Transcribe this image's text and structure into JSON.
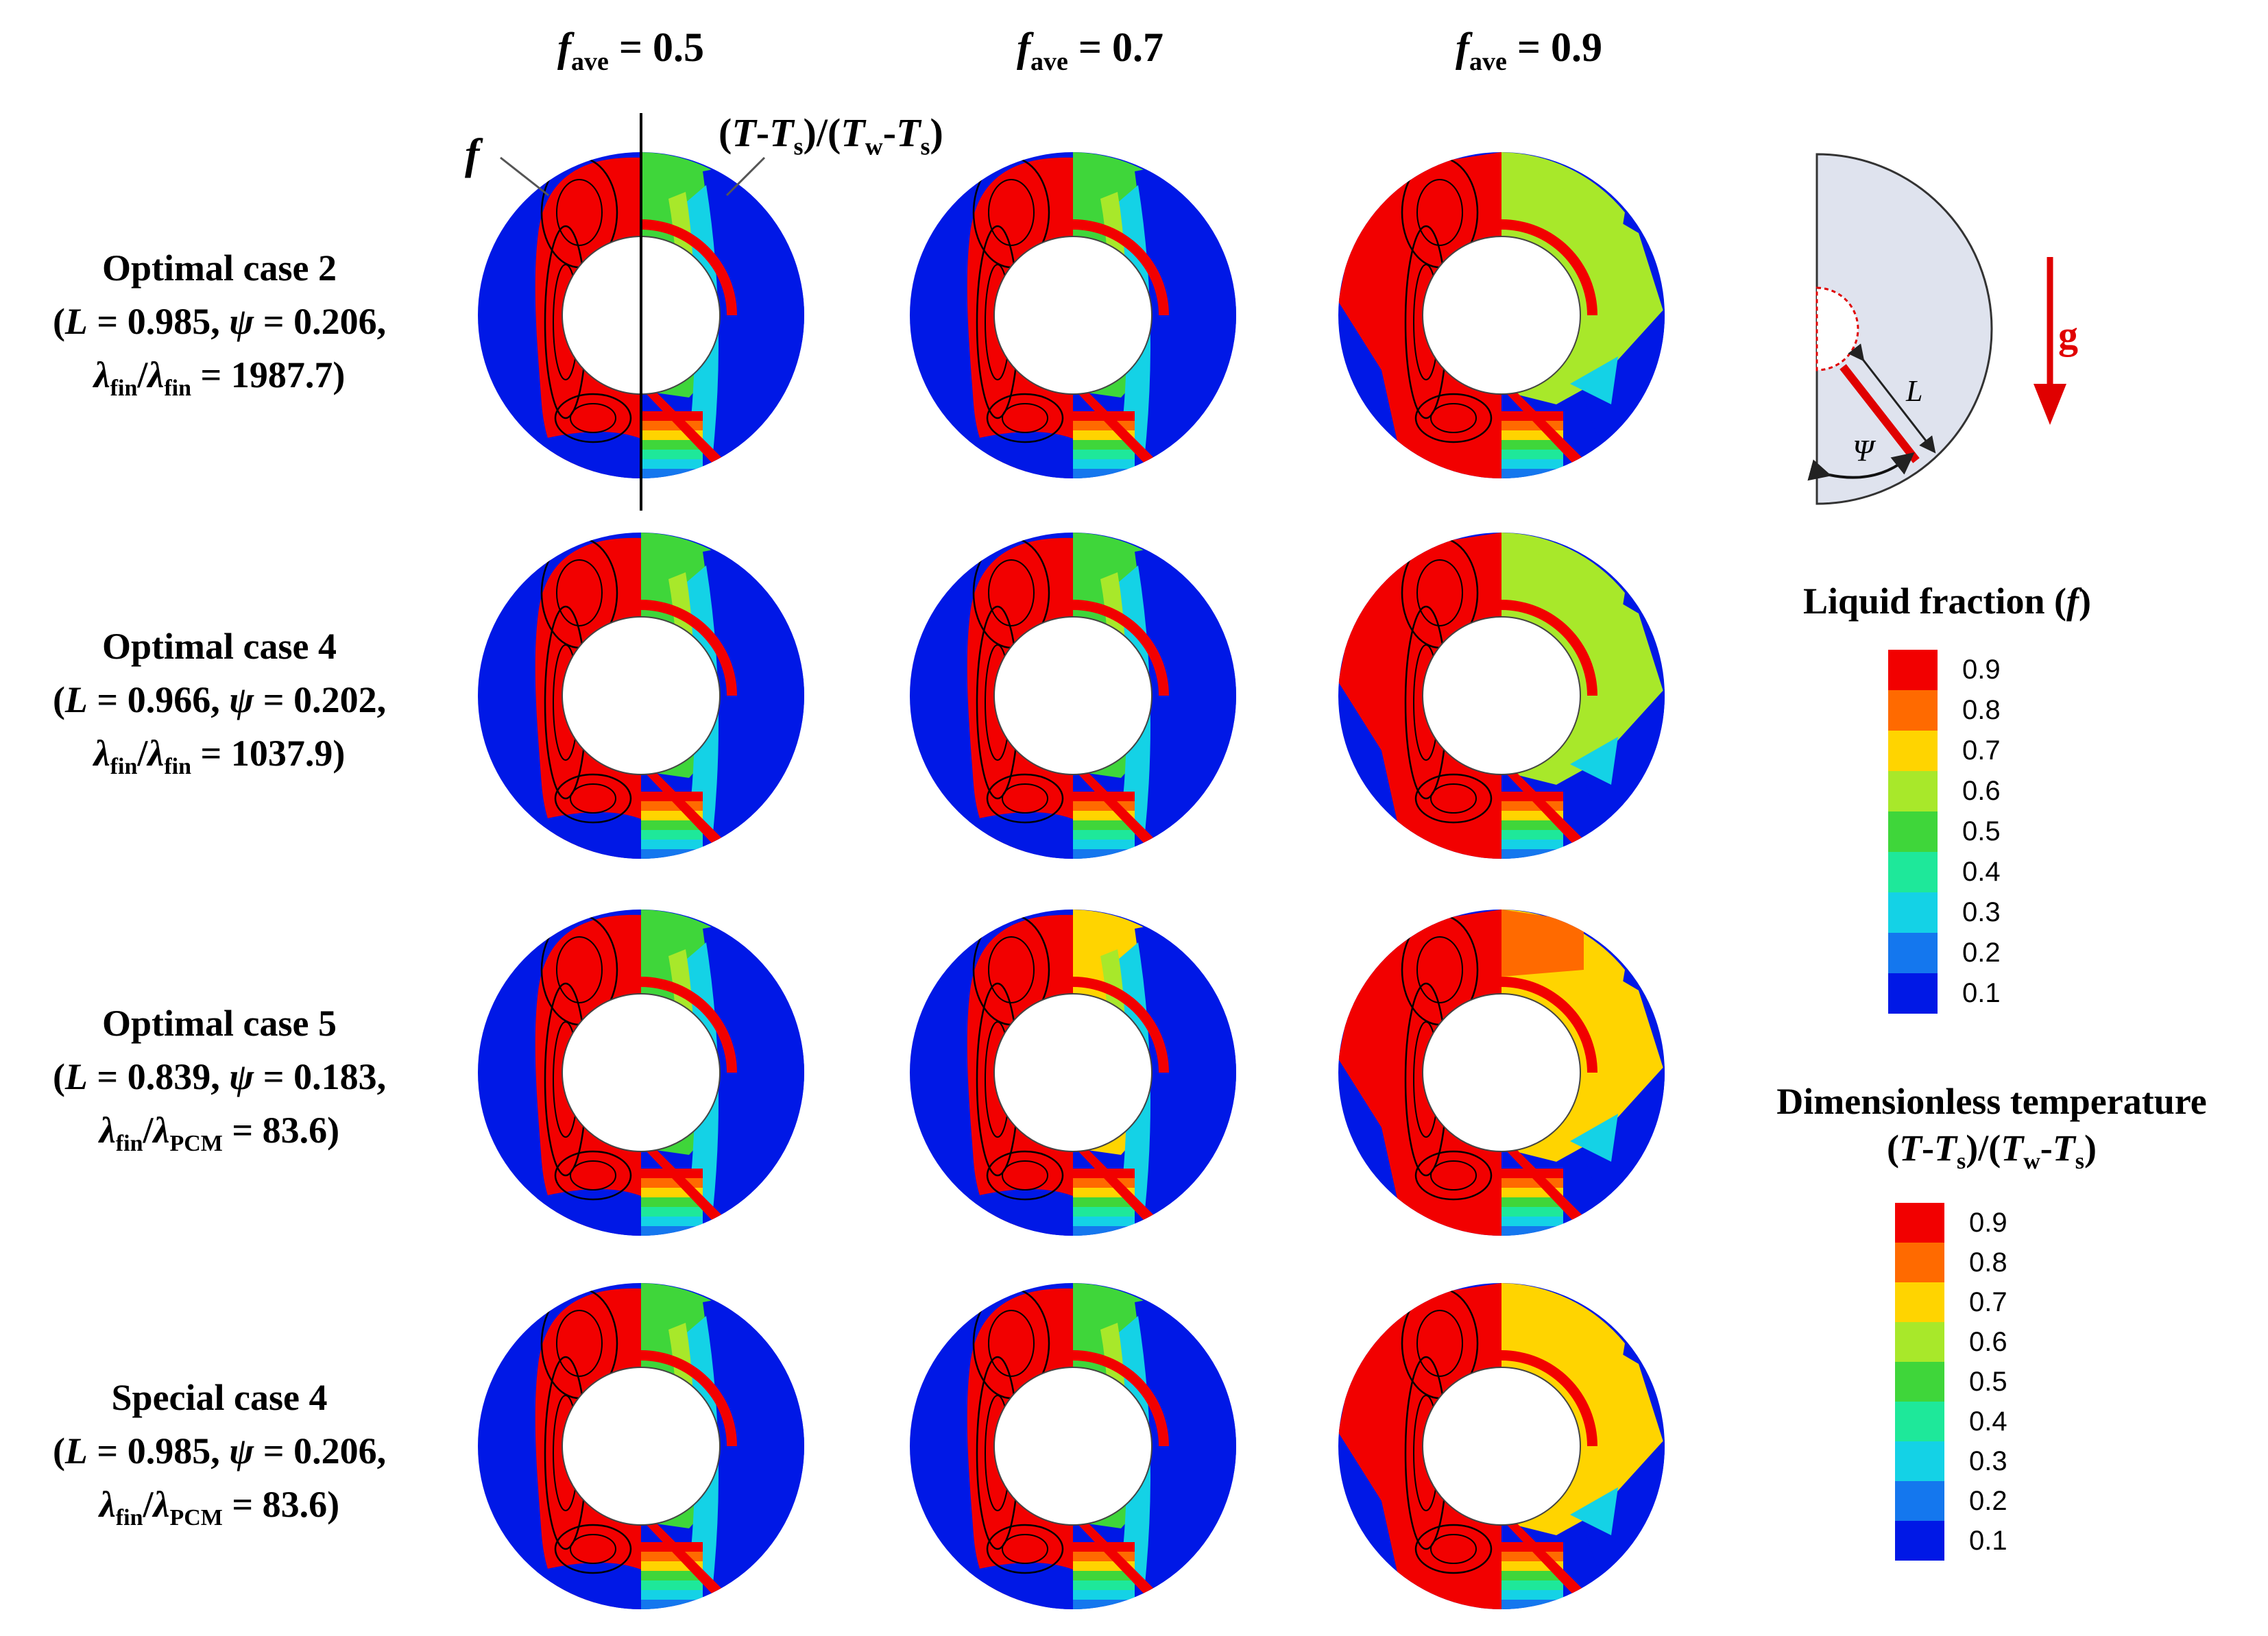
{
  "column_headers": [
    {
      "symbol": "f",
      "sub": "ave",
      "value": " = 0.5"
    },
    {
      "symbol": "f",
      "sub": "ave",
      "value": " = 0.7"
    },
    {
      "symbol": "f",
      "sub": "ave",
      "value": " = 0.9"
    }
  ],
  "annotations": {
    "f_label": "f",
    "temp_label": {
      "a": "(",
      "T1": "T",
      "b": "-",
      "T2": "T",
      "s1": "s",
      "c": ")/(",
      "T3": "T",
      "w": "w",
      "d": "-",
      "T4": "T",
      "s2": "s",
      "e": ")"
    }
  },
  "rows": [
    {
      "title": "Optimal case 2",
      "L": "0.985",
      "psi": "0.206",
      "ratio_num": "fin",
      "ratio_den": "fin",
      "ratio_val": "1987.7"
    },
    {
      "title": "Optimal case 4",
      "L": "0.966",
      "psi": "0.202",
      "ratio_num": "fin",
      "ratio_den": "fin",
      "ratio_val": "1037.9"
    },
    {
      "title": "Optimal case 5",
      "L": "0.839",
      "psi": "0.183",
      "ratio_num": "fin",
      "ratio_den": "PCM",
      "ratio_val": "83.6"
    },
    {
      "title": "Special case 4",
      "L": "0.985",
      "psi": "0.206",
      "ratio_num": "fin",
      "ratio_den": "PCM",
      "ratio_val": "83.6"
    }
  ],
  "row_text": {
    "L": "L",
    "psi": "ψ",
    "lambda": "λ",
    "eq": " = ",
    "comma": ",",
    "open": "(",
    "close": ")",
    "slash": "/"
  },
  "schematic": {
    "g_label": "g",
    "L_label": "L",
    "psi_label": "Ψ"
  },
  "legend_liquid": {
    "title": "Liquid fraction (",
    "title_sym": "f",
    "title_end": ")",
    "ticks": [
      "0.9",
      "0.8",
      "0.7",
      "0.6",
      "0.5",
      "0.4",
      "0.3",
      "0.2",
      "0.1"
    ]
  },
  "legend_temp": {
    "title": "Dimensionless temperature",
    "ticks": [
      "0.9",
      "0.8",
      "0.7",
      "0.6",
      "0.5",
      "0.4",
      "0.3",
      "0.2",
      "0.1"
    ]
  },
  "colors": {
    "red": "#f20000",
    "orange": "#ff6a00",
    "yellow": "#ffd400",
    "lime": "#a8e82a",
    "green": "#3fd63a",
    "teal": "#1ee89a",
    "cyan": "#14d2e6",
    "sky": "#1477ee",
    "blue": "#0018e6",
    "schematic_fill": "#dfe3ee"
  },
  "legend_colors": [
    "#f20000",
    "#ff6a00",
    "#ffd400",
    "#a8e82a",
    "#3fd63a",
    "#1ee89a",
    "#14d2e6",
    "#1477ee",
    "#0018e6"
  ]
}
